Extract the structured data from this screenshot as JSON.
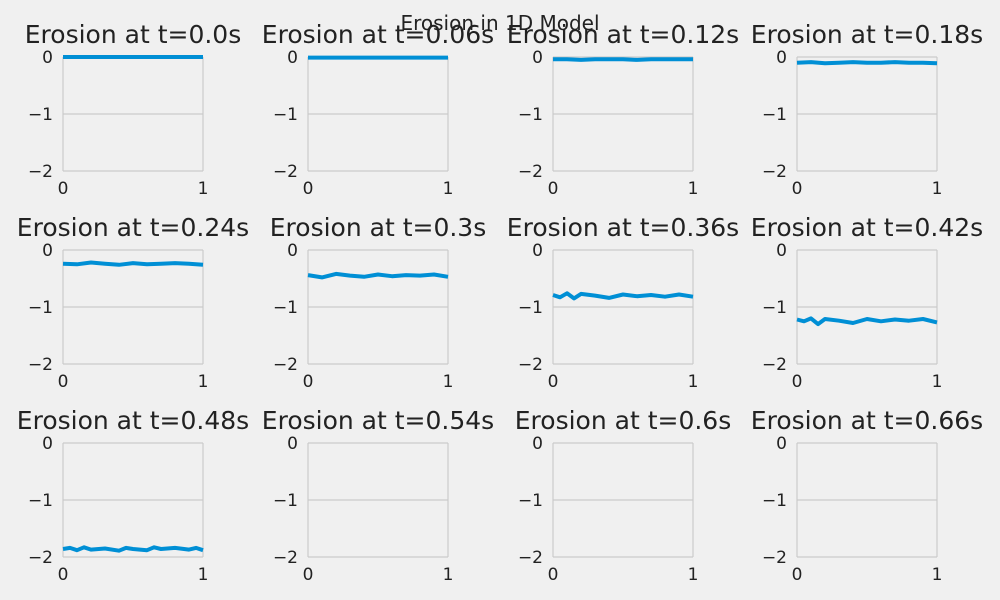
{
  "figure": {
    "suptitle": "Erosion in 1D Model",
    "background": "#f0f0f0",
    "line_color": "#008fd5",
    "grid_color": "#cbcbcb"
  },
  "chart_data": [
    {
      "type": "line",
      "title": "Erosion at t=0.0s",
      "xlim": [
        0,
        1
      ],
      "ylim": [
        -2,
        0
      ],
      "xticks": [
        "0",
        "1"
      ],
      "yticks": [
        "0",
        "−1",
        "−2"
      ],
      "grid": true,
      "series": [
        {
          "x": [
            0,
            0.1,
            0.2,
            0.3,
            0.4,
            0.5,
            0.6,
            0.7,
            0.8,
            0.9,
            1.0
          ],
          "y": [
            0,
            0,
            0,
            0,
            0,
            0,
            0,
            0,
            0,
            0,
            0
          ]
        }
      ]
    },
    {
      "type": "line",
      "title": "Erosion at t=0.06s",
      "xlim": [
        0,
        1
      ],
      "ylim": [
        -2,
        0
      ],
      "xticks": [
        "0",
        "1"
      ],
      "yticks": [
        "0",
        "−1",
        "−2"
      ],
      "grid": true,
      "series": [
        {
          "x": [
            0,
            0.1,
            0.2,
            0.3,
            0.4,
            0.5,
            0.6,
            0.7,
            0.8,
            0.9,
            1.0
          ],
          "y": [
            -0.01,
            -0.01,
            -0.01,
            -0.01,
            -0.01,
            -0.01,
            -0.01,
            -0.01,
            -0.01,
            -0.01,
            -0.01
          ]
        }
      ]
    },
    {
      "type": "line",
      "title": "Erosion at t=0.12s",
      "xlim": [
        0,
        1
      ],
      "ylim": [
        -2,
        0
      ],
      "xticks": [
        "0",
        "1"
      ],
      "yticks": [
        "0",
        "−1",
        "−2"
      ],
      "grid": true,
      "series": [
        {
          "x": [
            0,
            0.1,
            0.2,
            0.3,
            0.4,
            0.5,
            0.6,
            0.7,
            0.8,
            0.9,
            1.0
          ],
          "y": [
            -0.04,
            -0.04,
            -0.05,
            -0.04,
            -0.04,
            -0.04,
            -0.05,
            -0.04,
            -0.04,
            -0.04,
            -0.04
          ]
        }
      ]
    },
    {
      "type": "line",
      "title": "Erosion at t=0.18s",
      "xlim": [
        0,
        1
      ],
      "ylim": [
        -2,
        0
      ],
      "xticks": [
        "0",
        "1"
      ],
      "yticks": [
        "0",
        "−1",
        "−2"
      ],
      "grid": true,
      "series": [
        {
          "x": [
            0,
            0.1,
            0.2,
            0.3,
            0.4,
            0.5,
            0.6,
            0.7,
            0.8,
            0.9,
            1.0
          ],
          "y": [
            -0.1,
            -0.09,
            -0.11,
            -0.1,
            -0.09,
            -0.1,
            -0.1,
            -0.09,
            -0.1,
            -0.1,
            -0.11
          ]
        }
      ]
    },
    {
      "type": "line",
      "title": "Erosion at t=0.24s",
      "xlim": [
        0,
        1
      ],
      "ylim": [
        -2,
        0
      ],
      "xticks": [
        "0",
        "1"
      ],
      "yticks": [
        "0",
        "−1",
        "−2"
      ],
      "grid": true,
      "series": [
        {
          "x": [
            0,
            0.1,
            0.2,
            0.3,
            0.4,
            0.5,
            0.6,
            0.7,
            0.8,
            0.9,
            1.0
          ],
          "y": [
            -0.24,
            -0.25,
            -0.22,
            -0.24,
            -0.26,
            -0.23,
            -0.25,
            -0.24,
            -0.23,
            -0.24,
            -0.26
          ]
        }
      ]
    },
    {
      "type": "line",
      "title": "Erosion at t=0.3s",
      "xlim": [
        0,
        1
      ],
      "ylim": [
        -2,
        0
      ],
      "xticks": [
        "0",
        "1"
      ],
      "yticks": [
        "0",
        "−1",
        "−2"
      ],
      "grid": true,
      "series": [
        {
          "x": [
            0,
            0.1,
            0.2,
            0.3,
            0.4,
            0.5,
            0.6,
            0.7,
            0.8,
            0.9,
            1.0
          ],
          "y": [
            -0.44,
            -0.48,
            -0.42,
            -0.45,
            -0.47,
            -0.43,
            -0.46,
            -0.44,
            -0.45,
            -0.43,
            -0.47
          ]
        }
      ]
    },
    {
      "type": "line",
      "title": "Erosion at t=0.36s",
      "xlim": [
        0,
        1
      ],
      "ylim": [
        -2,
        0
      ],
      "xticks": [
        "0",
        "1"
      ],
      "yticks": [
        "0",
        "−1",
        "−2"
      ],
      "grid": true,
      "series": [
        {
          "x": [
            0,
            0.05,
            0.1,
            0.15,
            0.2,
            0.3,
            0.4,
            0.5,
            0.6,
            0.7,
            0.8,
            0.9,
            1.0
          ],
          "y": [
            -0.79,
            -0.83,
            -0.76,
            -0.85,
            -0.77,
            -0.8,
            -0.84,
            -0.78,
            -0.81,
            -0.79,
            -0.82,
            -0.78,
            -0.82
          ]
        }
      ]
    },
    {
      "type": "line",
      "title": "Erosion at t=0.42s",
      "xlim": [
        0,
        1
      ],
      "ylim": [
        -2,
        0
      ],
      "xticks": [
        "0",
        "1"
      ],
      "yticks": [
        "0",
        "−1",
        "−2"
      ],
      "grid": true,
      "series": [
        {
          "x": [
            0,
            0.05,
            0.1,
            0.15,
            0.2,
            0.3,
            0.4,
            0.5,
            0.6,
            0.7,
            0.8,
            0.9,
            1.0
          ],
          "y": [
            -1.22,
            -1.25,
            -1.2,
            -1.3,
            -1.21,
            -1.24,
            -1.28,
            -1.21,
            -1.25,
            -1.22,
            -1.24,
            -1.21,
            -1.27
          ]
        }
      ]
    },
    {
      "type": "line",
      "title": "Erosion at t=0.48s",
      "xlim": [
        0,
        1
      ],
      "ylim": [
        -2,
        0
      ],
      "xticks": [
        "0",
        "1"
      ],
      "yticks": [
        "0",
        "−1",
        "−2"
      ],
      "grid": true,
      "series": [
        {
          "x": [
            0,
            0.05,
            0.1,
            0.15,
            0.2,
            0.3,
            0.4,
            0.45,
            0.5,
            0.6,
            0.65,
            0.7,
            0.8,
            0.9,
            0.95,
            1.0
          ],
          "y": [
            -1.86,
            -1.84,
            -1.88,
            -1.83,
            -1.87,
            -1.85,
            -1.89,
            -1.84,
            -1.86,
            -1.88,
            -1.83,
            -1.86,
            -1.84,
            -1.87,
            -1.84,
            -1.88
          ]
        }
      ]
    },
    {
      "type": "line",
      "title": "Erosion at t=0.54s",
      "xlim": [
        0,
        1
      ],
      "ylim": [
        -2,
        0
      ],
      "xticks": [
        "0",
        "1"
      ],
      "yticks": [
        "0",
        "−1",
        "−2"
      ],
      "grid": true,
      "series": []
    },
    {
      "type": "line",
      "title": "Erosion at t=0.6s",
      "xlim": [
        0,
        1
      ],
      "ylim": [
        -2,
        0
      ],
      "xticks": [
        "0",
        "1"
      ],
      "yticks": [
        "0",
        "−1",
        "−2"
      ],
      "grid": true,
      "series": []
    },
    {
      "type": "line",
      "title": "Erosion at t=0.66s",
      "xlim": [
        0,
        1
      ],
      "ylim": [
        -2,
        0
      ],
      "xticks": [
        "0",
        "1"
      ],
      "yticks": [
        "0",
        "−1",
        "−2"
      ],
      "grid": true,
      "series": []
    }
  ]
}
